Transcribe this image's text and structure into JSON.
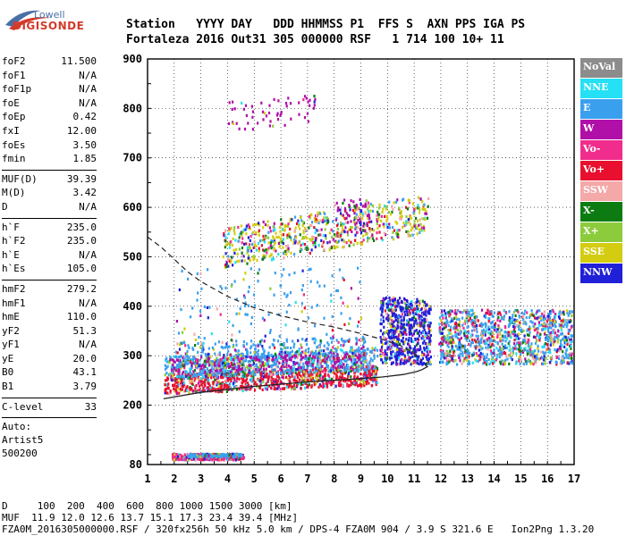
{
  "logo": {
    "top": "Lowell",
    "main": "DIGISONDE"
  },
  "header": {
    "labels": "Station   YYYY DAY   DDD HHMMSS P1  FFS S  AXN PPS IGA PS",
    "values": "Fortaleza 2016 Out31 305 000000 RSF   1 714 100 10+ 11"
  },
  "params": {
    "g1": [
      {
        "k": "foF2",
        "v": "11.500"
      },
      {
        "k": "foF1",
        "v": "N/A"
      },
      {
        "k": "foF1p",
        "v": "N/A"
      },
      {
        "k": "foE",
        "v": "N/A"
      },
      {
        "k": "foEp",
        "v": "0.42"
      },
      {
        "k": "fxI",
        "v": "12.00"
      },
      {
        "k": "foEs",
        "v": "3.50"
      },
      {
        "k": "fmin",
        "v": "1.85"
      }
    ],
    "g2": [
      {
        "k": "MUF(D)",
        "v": "39.39"
      },
      {
        "k": "M(D)",
        "v": "3.42"
      },
      {
        "k": "D",
        "v": "N/A"
      }
    ],
    "g3": [
      {
        "k": "h`F",
        "v": "235.0"
      },
      {
        "k": "h`F2",
        "v": "235.0"
      },
      {
        "k": "h`E",
        "v": "N/A"
      },
      {
        "k": "h`Es",
        "v": "105.0"
      }
    ],
    "g4": [
      {
        "k": "hmF2",
        "v": "279.2"
      },
      {
        "k": "hmF1",
        "v": "N/A"
      },
      {
        "k": "hmE",
        "v": "110.0"
      },
      {
        "k": "yF2",
        "v": "51.3"
      },
      {
        "k": "yF1",
        "v": "N/A"
      },
      {
        "k": "yE",
        "v": "20.0"
      },
      {
        "k": "B0",
        "v": "43.1"
      },
      {
        "k": "B1",
        "v": "3.79"
      }
    ],
    "g5": [
      {
        "k": "C-level",
        "v": "33"
      }
    ],
    "auto": [
      "Auto:",
      "Artist5",
      "500200"
    ]
  },
  "legend": [
    {
      "label": "NoVal",
      "color": "#8c8c8c"
    },
    {
      "label": "NNE",
      "color": "#26e0f5"
    },
    {
      "label": "E",
      "color": "#3aa0ee"
    },
    {
      "label": "W",
      "color": "#b00fa8"
    },
    {
      "label": "Vo-",
      "color": "#f02c8c"
    },
    {
      "label": "Vo+",
      "color": "#e8102e"
    },
    {
      "label": "SSW",
      "color": "#f4a8a8"
    },
    {
      "label": "X-",
      "color": "#0c7c12"
    },
    {
      "label": "X+",
      "color": "#8ccc3c"
    },
    {
      "label": "SSE",
      "color": "#d4cc10"
    },
    {
      "label": "NNW",
      "color": "#2020d8"
    }
  ],
  "bottom": {
    "line1": "D     100  200  400  600  800 1000 1500 3000 [km]",
    "line2": "MUF  11.9 12.0 12.6 13.7 15.1 17.3 23.4 39.4 [MHz]",
    "line3": "FZA0M_2016305000000.RSF / 320fx256h 50 kHz 5.0 km / DPS-4 FZA0M 904 / 3.9 S 321.6 E   Ion2Png 1.3.20"
  },
  "chart_data": {
    "type": "scatter",
    "xlim": [
      1,
      17
    ],
    "ylim": [
      80,
      900
    ],
    "xticks": [
      "1",
      "2",
      "3",
      "4",
      "5",
      "6",
      "7",
      "8",
      "9",
      "10",
      "11",
      "12",
      "13",
      "14",
      "15",
      "16",
      "17"
    ],
    "yticks": [
      "80",
      "200",
      "300",
      "400",
      "500",
      "600",
      "700",
      "800",
      "900"
    ],
    "grid": true,
    "profile_curve": {
      "x": [
        1.6,
        3,
        5,
        7,
        8.5,
        9.8,
        10.6,
        11.1,
        11.3,
        11.5,
        11.4
      ],
      "y": [
        213,
        226,
        238,
        247,
        252,
        257,
        262,
        268,
        272,
        278,
        282
      ]
    },
    "dashed_curve": {
      "x": [
        1.0,
        1.5,
        2,
        2.5,
        3,
        4,
        5,
        6,
        7,
        8,
        9,
        10,
        10.5,
        11.0,
        11.3
      ],
      "y": [
        540,
        520,
        495,
        470,
        450,
        420,
        397,
        381,
        368,
        358,
        345,
        330,
        320,
        305,
        290
      ]
    },
    "echo_regions": [
      {
        "name": "Es",
        "x": [
          1.9,
          4.6
        ],
        "y": [
          90,
          105
        ],
        "dominant": "Vo-"
      },
      {
        "name": "F trace",
        "x": [
          1.6,
          11.0
        ],
        "y": [
          220,
          340
        ],
        "dominant": "Vo+"
      },
      {
        "name": "F spread",
        "x": [
          9.7,
          11.6
        ],
        "y": [
          290,
          420
        ],
        "dominant": "NNW"
      },
      {
        "name": "F spread 2",
        "x": [
          11.9,
          16.9
        ],
        "y": [
          280,
          395
        ],
        "dominant": "E"
      },
      {
        "name": "2F",
        "x": [
          3.8,
          11.5
        ],
        "y": [
          480,
          660
        ],
        "dominant": "SSE"
      },
      {
        "name": "Multi",
        "x": [
          4,
          7.3
        ],
        "y": [
          770,
          830
        ],
        "dominant": "W"
      }
    ]
  }
}
